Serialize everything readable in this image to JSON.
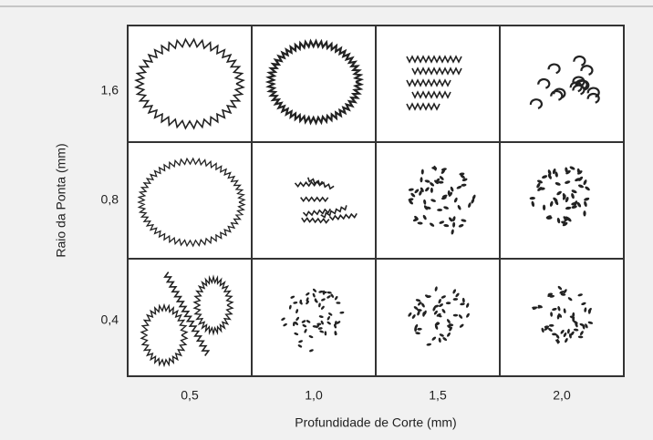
{
  "y_axis": {
    "label": "Raio da Ponta (mm)",
    "ticks": [
      "1,6",
      "0,8",
      "0,4"
    ]
  },
  "x_axis": {
    "label": "Profundidade de Corte (mm)",
    "ticks": [
      "0,5",
      "1,0",
      "1,5",
      "2,0"
    ]
  }
}
